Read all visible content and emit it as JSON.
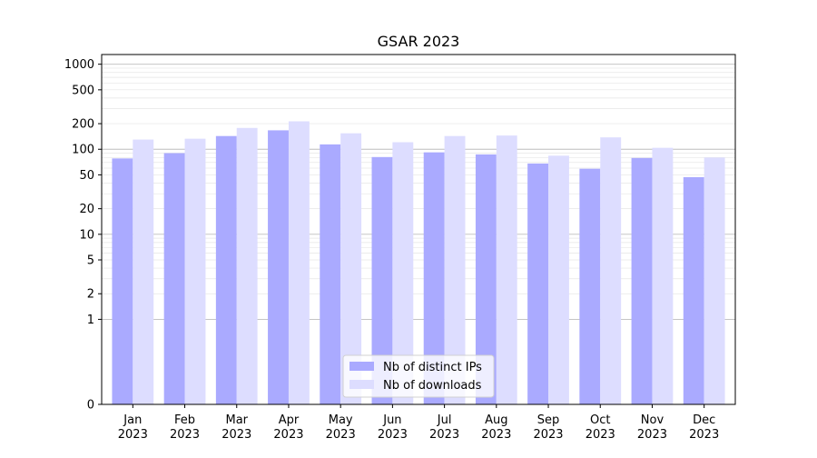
{
  "chart_data": {
    "type": "bar",
    "title": "GSAR 2023",
    "xlabel": "",
    "ylabel": "",
    "y_scale": "symlog",
    "ylim": [
      0,
      1300
    ],
    "grid": "horizontal",
    "legend_position": "bottom-center",
    "categories": [
      "Jan\n2023",
      "Feb\n2023",
      "Mar\n2023",
      "Apr\n2023",
      "May\n2023",
      "Jun\n2023",
      "Jul\n2023",
      "Aug\n2023",
      "Sep\n2023",
      "Oct\n2023",
      "Nov\n2023",
      "Dec\n2023"
    ],
    "y_ticks": [
      0,
      1,
      2,
      5,
      10,
      20,
      50,
      100,
      200,
      500,
      1000
    ],
    "y_tick_labels": [
      "0",
      "1",
      "2",
      "5",
      "10",
      "20",
      "50",
      "100",
      "200",
      "500",
      "1000"
    ],
    "series": [
      {
        "name": "Nb of distinct IPs",
        "color": "#aaaaff",
        "values": [
          78,
          90,
          143,
          167,
          114,
          81,
          92,
          87,
          68,
          59,
          79,
          47
        ]
      },
      {
        "name": "Nb of downloads",
        "color": "#ddddff",
        "values": [
          130,
          133,
          178,
          213,
          154,
          121,
          143,
          145,
          84,
          138,
          104,
          80
        ]
      }
    ]
  }
}
